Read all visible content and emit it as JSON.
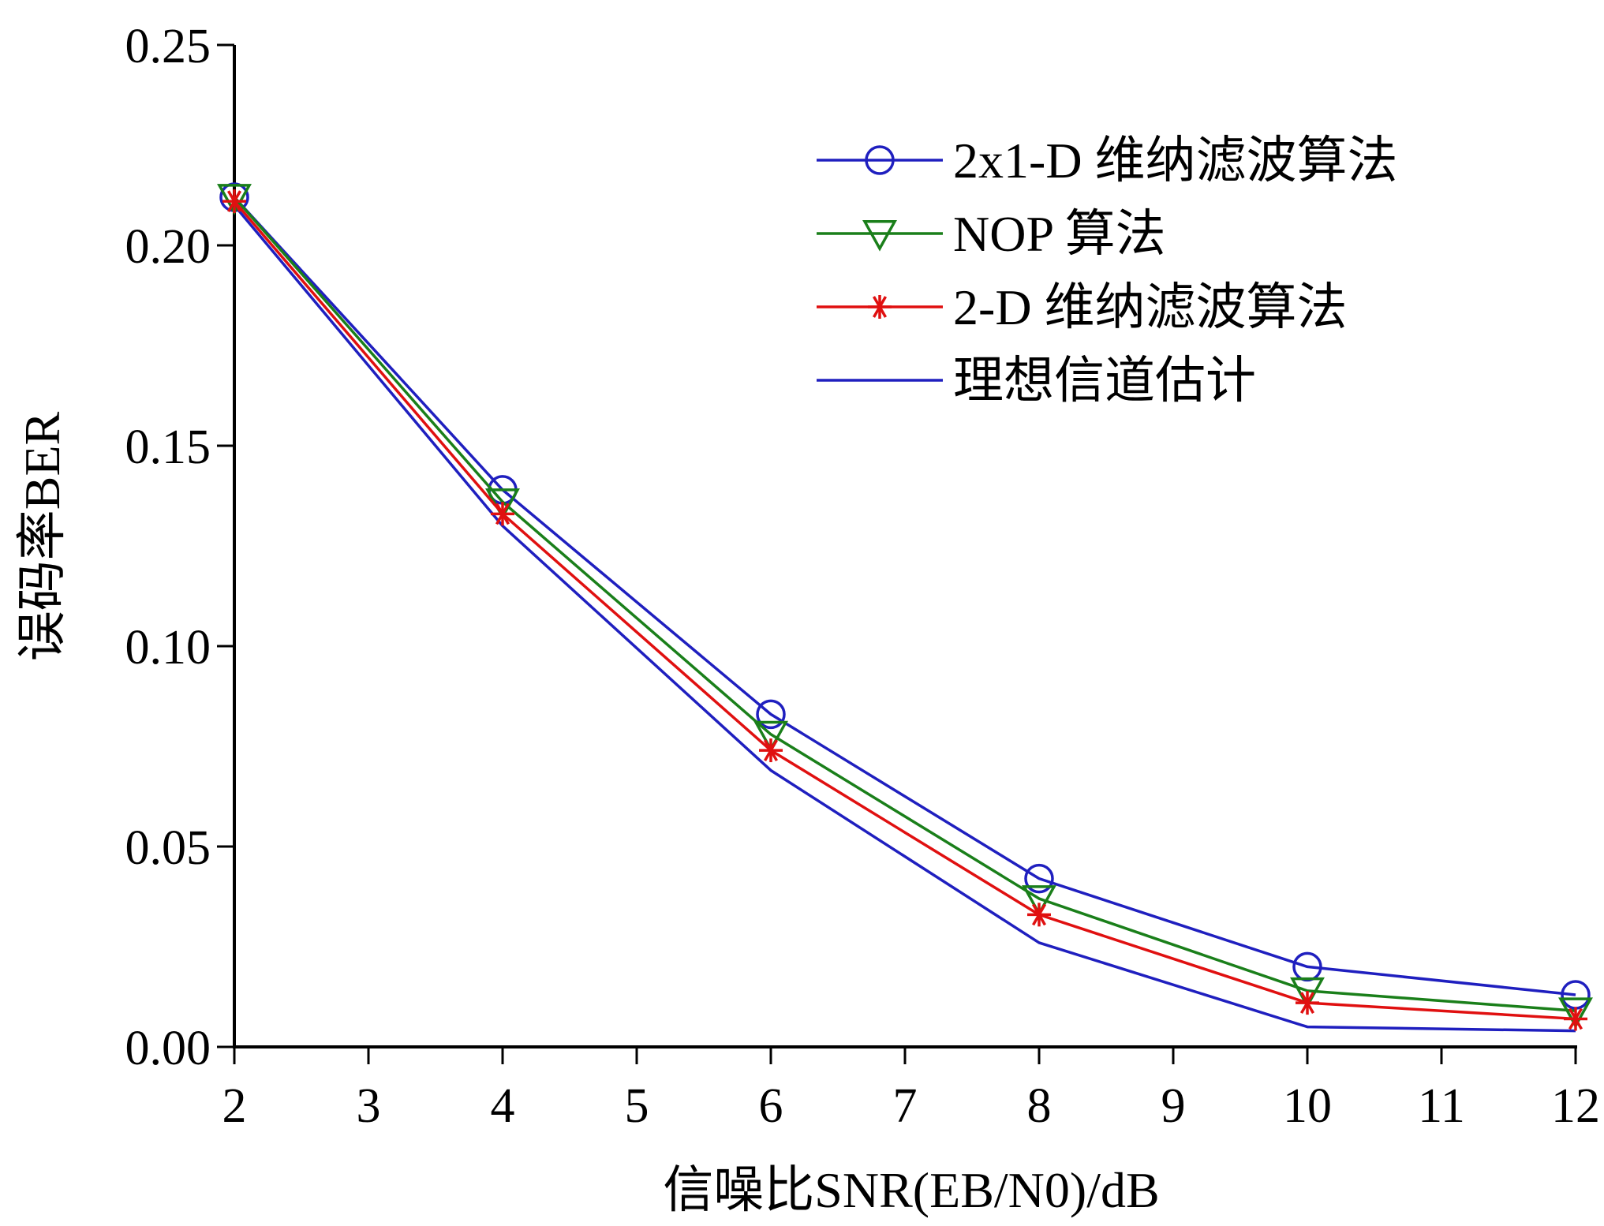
{
  "chart_data": {
    "type": "line",
    "title": "",
    "xlabel": "信噪比SNR(EB/N0)/dB",
    "ylabel": "误码率BER",
    "xlim": [
      2,
      12
    ],
    "ylim": [
      0,
      0.25
    ],
    "x_ticks": [
      "2",
      "3",
      "4",
      "5",
      "6",
      "7",
      "8",
      "9",
      "10",
      "11",
      "12"
    ],
    "y_ticks": [
      "0.00",
      "0.05",
      "0.10",
      "0.15",
      "0.20",
      "0.25"
    ],
    "grid": false,
    "legend_position": "top-right",
    "x": [
      2,
      4,
      6,
      8,
      10,
      12
    ],
    "series": [
      {
        "name": "2x1-D 维纳滤波算法",
        "color": "#1f1fbf",
        "marker": "circle",
        "values": [
          0.212,
          0.139,
          0.083,
          0.042,
          0.02,
          0.013
        ]
      },
      {
        "name": "NOP 算法",
        "color": "#1a7f1a",
        "marker": "triangle-down",
        "values": [
          0.212,
          0.136,
          0.078,
          0.037,
          0.014,
          0.009
        ]
      },
      {
        "name": "2-D 维纳滤波算法",
        "color": "#e01010",
        "marker": "asterisk",
        "values": [
          0.211,
          0.133,
          0.074,
          0.033,
          0.011,
          0.007
        ]
      },
      {
        "name": "理想信道估计",
        "color": "#1f1fbf",
        "marker": "none",
        "values": [
          0.21,
          0.13,
          0.069,
          0.026,
          0.005,
          0.004
        ]
      }
    ]
  }
}
